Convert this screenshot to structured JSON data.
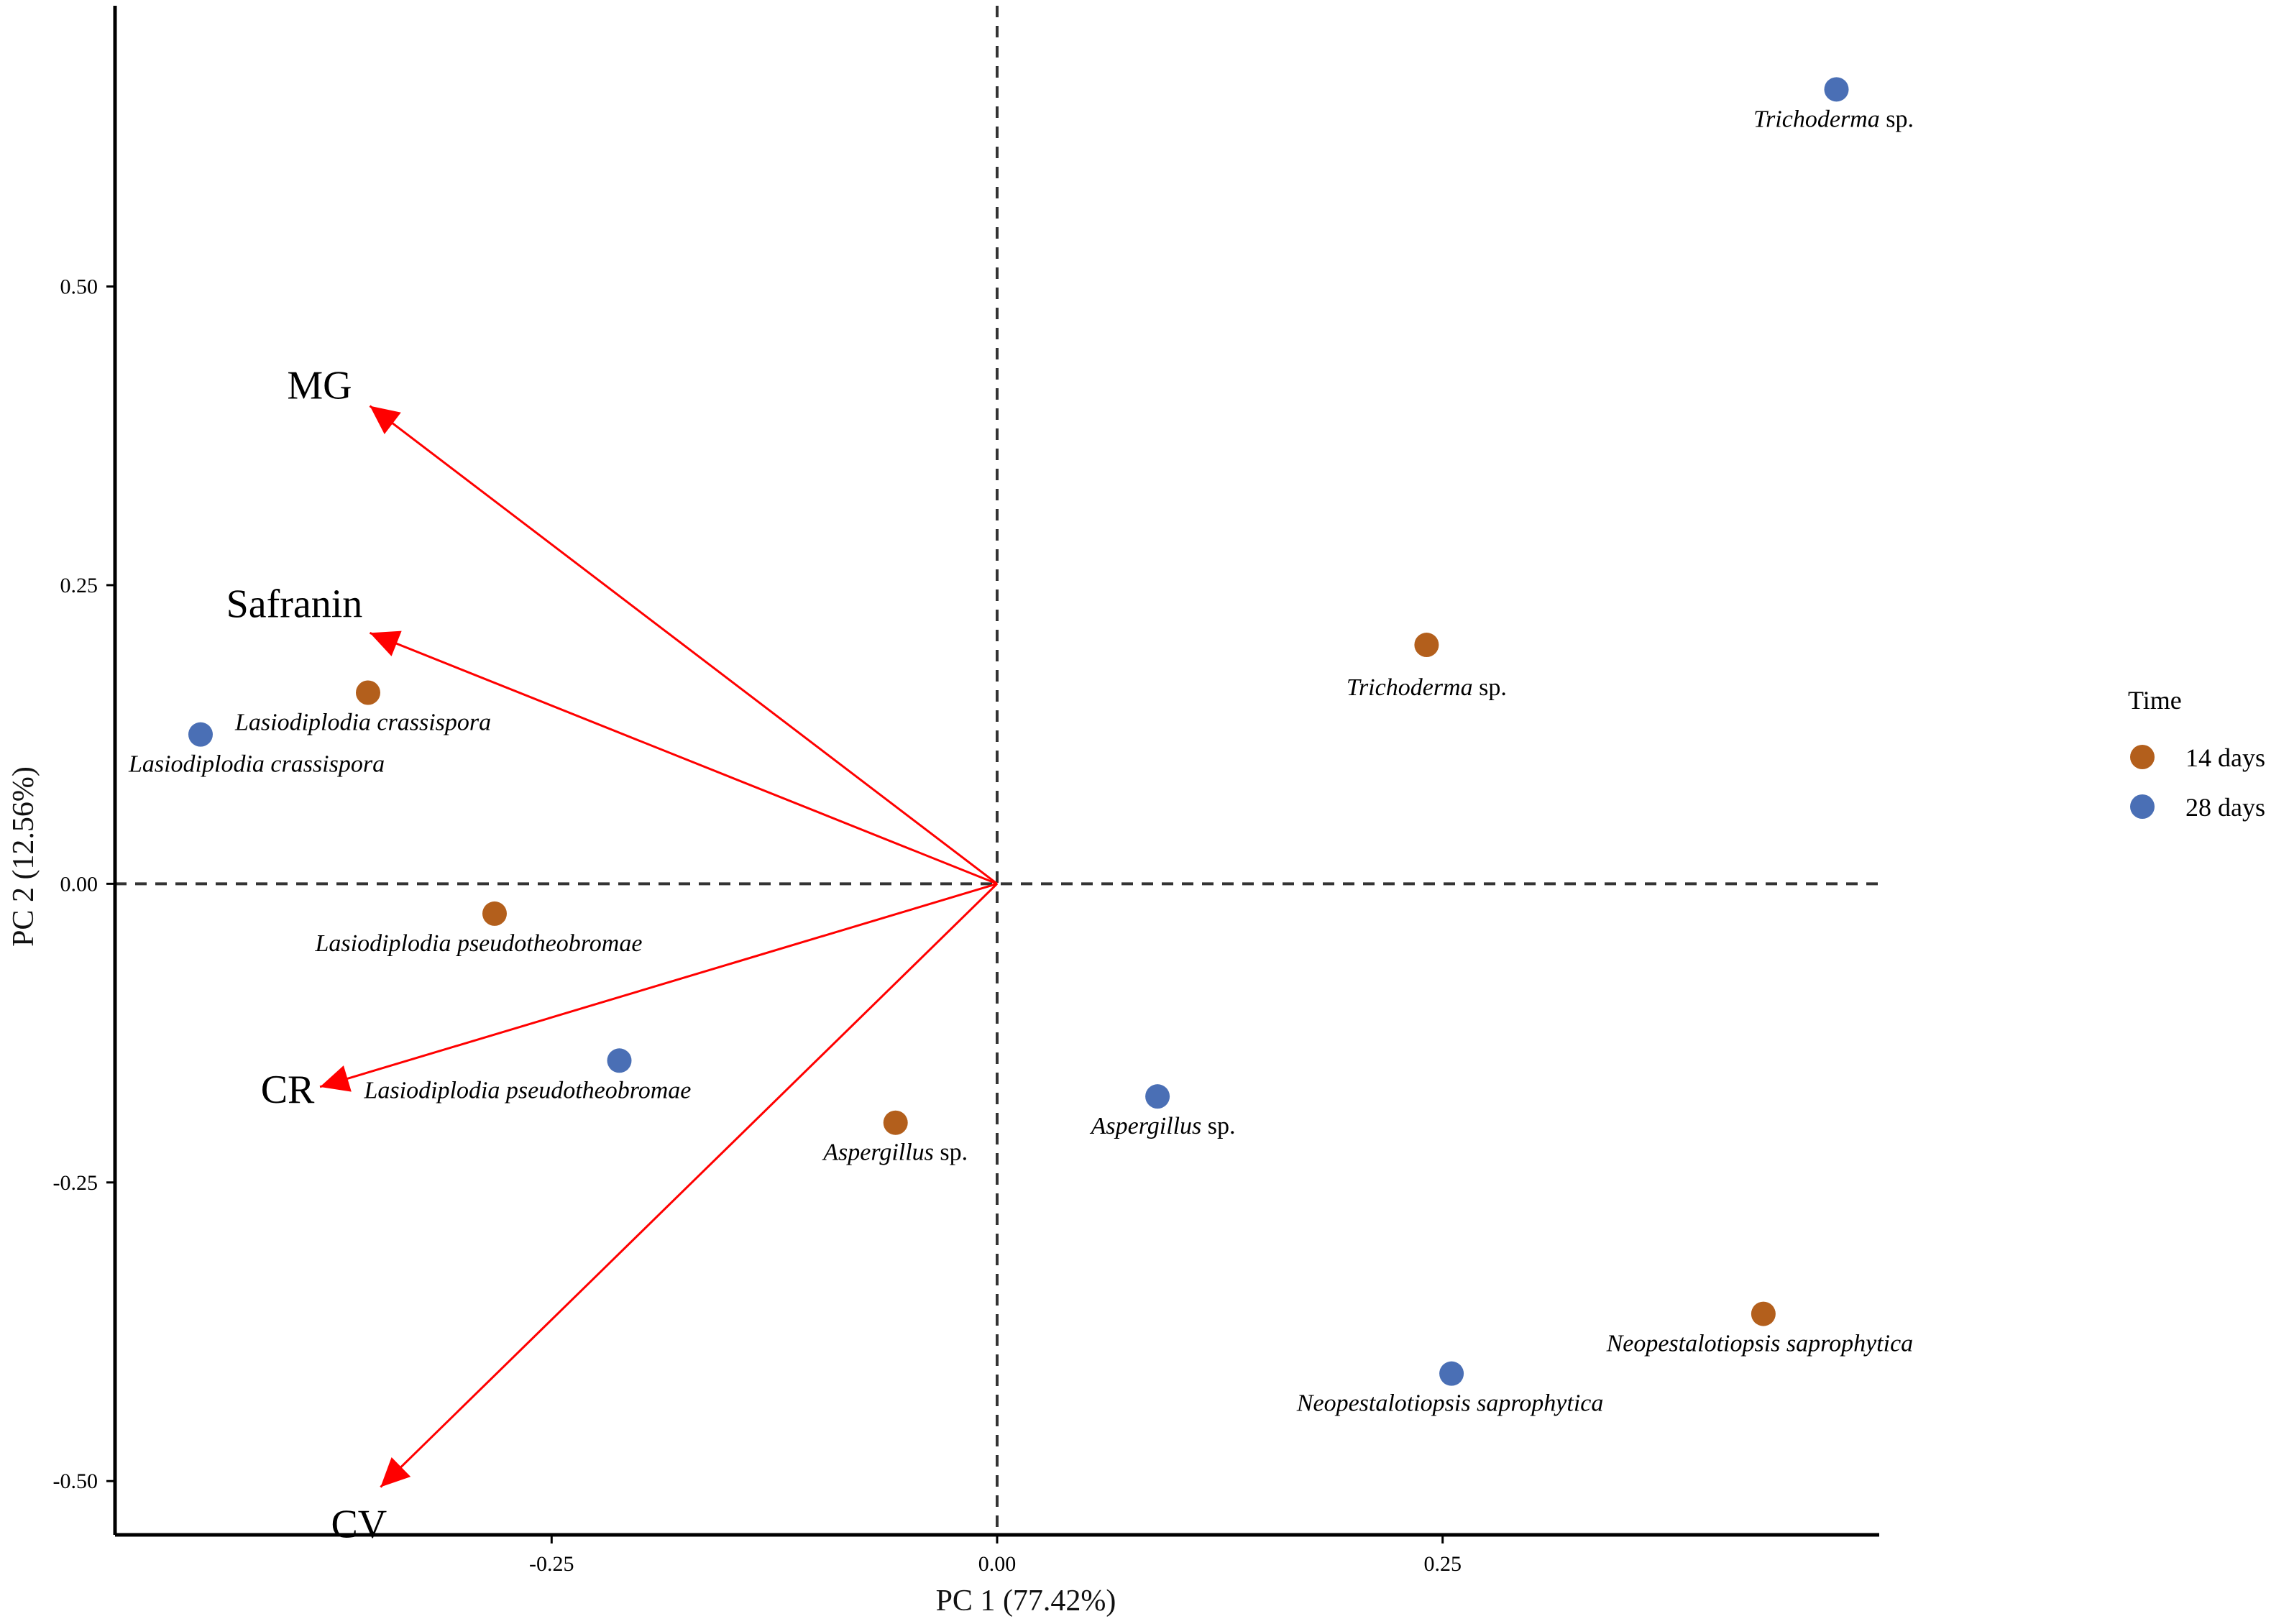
{
  "chart_data": {
    "type": "scatter",
    "title": "",
    "xlabel": "PC 1 (77.42%)",
    "ylabel": "PC 2 (12.56%)",
    "xlim": [
      -0.495,
      0.495
    ],
    "ylim": [
      -0.545,
      0.735
    ],
    "xticks": [
      -0.25,
      0.0,
      0.25
    ],
    "xtick_labels": [
      "-0.25",
      "0.00",
      "0.25"
    ],
    "yticks": [
      -0.5,
      -0.25,
      0.0,
      0.25,
      0.5
    ],
    "ytick_labels": [
      "-0.50",
      "-0.25",
      "0.00",
      "0.25",
      "0.50"
    ],
    "grid": false,
    "reference_lines": {
      "x": 0,
      "y": 0,
      "style": "dashed"
    },
    "legend": {
      "title": "Time",
      "position": "right",
      "entries": [
        {
          "label": "14 days",
          "color": "#b35f1c"
        },
        {
          "label": "28 days",
          "color": "#4a6fb5"
        }
      ]
    },
    "series": [
      {
        "name": "14 days",
        "color": "#b35f1c",
        "points": [
          {
            "x": 0.241,
            "y": 0.2,
            "genus": "Trichoderma",
            "suffix": " sp.",
            "label_anchor": "middle",
            "label_dx": 0,
            "label_dy": 1
          },
          {
            "x": -0.353,
            "y": 0.16,
            "genus": "Lasiodiplodia crassispora",
            "suffix": "",
            "label_anchor": "start",
            "label_dx": -1,
            "label_dy": 1
          },
          {
            "x": -0.282,
            "y": -0.025,
            "genus": "Lasiodiplodia pseudotheobromae",
            "suffix": "",
            "label_anchor": "middle",
            "label_dx": -1,
            "label_dy": 1
          },
          {
            "x": -0.057,
            "y": -0.2,
            "genus": "Aspergillus",
            "suffix": " sp.",
            "label_anchor": "middle",
            "label_dx": 0,
            "label_dy": 1
          },
          {
            "x": 0.43,
            "y": -0.36,
            "genus": "Neopestalotiopsis saprophytica",
            "suffix": "",
            "label_anchor": "middle",
            "label_dx": 0,
            "label_dy": 1
          }
        ]
      },
      {
        "name": "28 days",
        "color": "#4a6fb5",
        "points": [
          {
            "x": 0.471,
            "y": 0.665,
            "genus": "Trichoderma",
            "suffix": " sp.",
            "label_anchor": "middle",
            "label_dx": 0,
            "label_dy": 1
          },
          {
            "x": -0.447,
            "y": 0.125,
            "genus": "Lasiodiplodia crassispora",
            "suffix": "",
            "label_anchor": "start",
            "label_dx": -1,
            "label_dy": 1
          },
          {
            "x": -0.212,
            "y": -0.148,
            "genus": "Lasiodiplodia pseudotheobromae",
            "suffix": "",
            "label_anchor": "start",
            "label_dx": -1,
            "label_dy": 1
          },
          {
            "x": 0.09,
            "y": -0.178,
            "genus": "Aspergillus",
            "suffix": " sp.",
            "label_anchor": "middle",
            "label_dx": 0,
            "label_dy": 1
          },
          {
            "x": 0.255,
            "y": -0.41,
            "genus": "Neopestalotiopsis saprophytica",
            "suffix": "",
            "label_anchor": "middle",
            "label_dx": 0,
            "label_dy": 1
          }
        ]
      }
    ],
    "vectors": {
      "color": "#ff0000",
      "items": [
        {
          "name": "MG",
          "x": -0.352,
          "y": 0.4
        },
        {
          "name": "Safranin",
          "x": -0.352,
          "y": 0.21
        },
        {
          "name": "CR",
          "x": -0.38,
          "y": -0.17
        },
        {
          "name": "CV",
          "x": -0.346,
          "y": -0.505
        }
      ]
    }
  }
}
